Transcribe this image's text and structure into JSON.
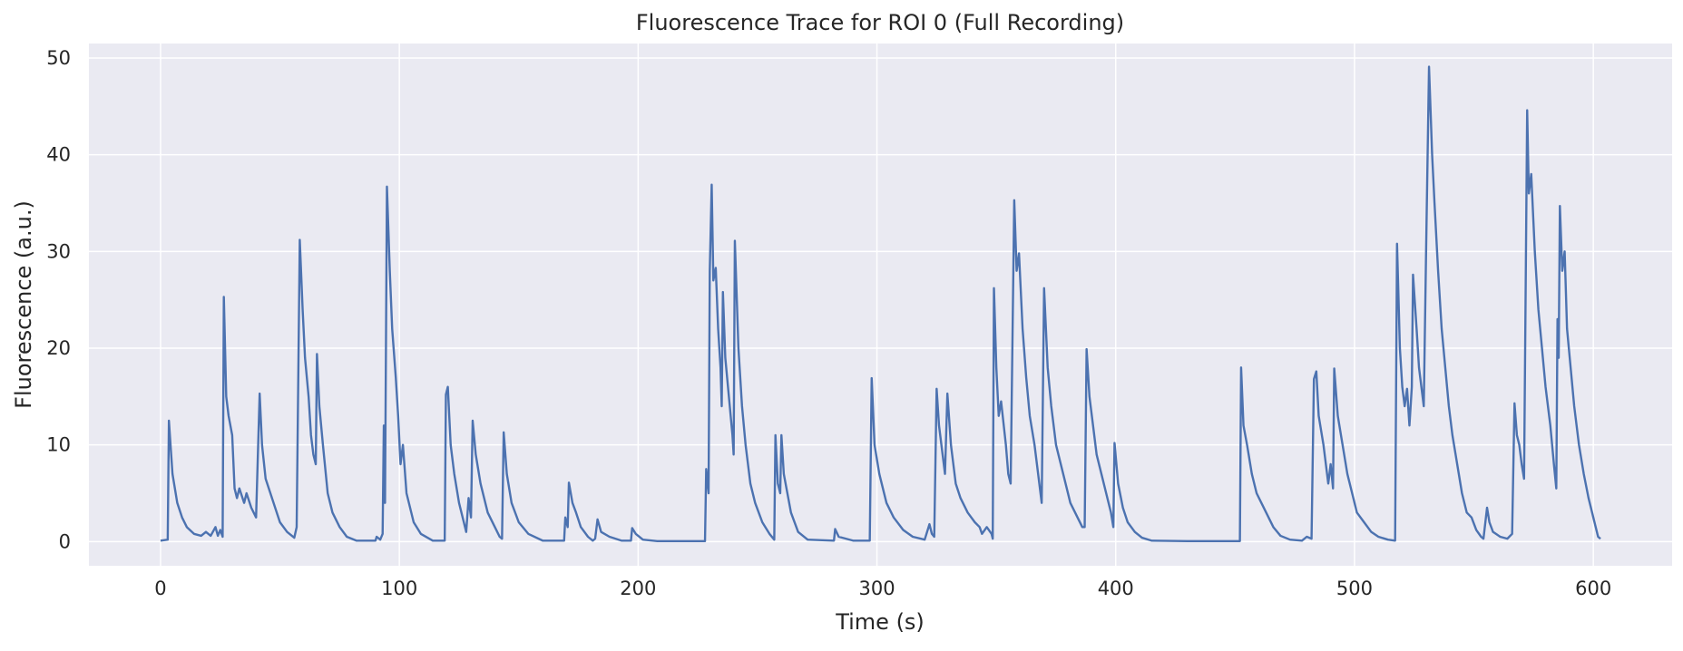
{
  "chart_data": {
    "type": "line",
    "title": "Fluorescence Trace for ROI 0 (Full Recording)",
    "xlabel": "Time (s)",
    "ylabel": "Fluorescence (a.u.)",
    "xlim": [
      -30,
      633
    ],
    "ylim": [
      -2.5,
      51.5
    ],
    "xticks": [
      0,
      100,
      200,
      300,
      400,
      500,
      600
    ],
    "yticks": [
      0,
      10,
      20,
      30,
      40,
      50
    ],
    "xtick_labels": [
      "0",
      "100",
      "200",
      "300",
      "400",
      "500",
      "600"
    ],
    "ytick_labels": [
      "0",
      "10",
      "20",
      "30",
      "40",
      "50"
    ],
    "grid": true,
    "background_color": "#EAEAF2",
    "grid_color": "#FFFFFF",
    "series": [
      {
        "color": "#4C72B0",
        "points": [
          [
            0,
            0.1
          ],
          [
            3,
            0.2
          ],
          [
            3.5,
            12.5
          ],
          [
            5,
            7
          ],
          [
            7,
            4
          ],
          [
            9,
            2.5
          ],
          [
            11,
            1.5
          ],
          [
            14,
            0.8
          ],
          [
            17,
            0.6
          ],
          [
            19,
            1.0
          ],
          [
            21,
            0.6
          ],
          [
            23,
            1.5
          ],
          [
            24,
            0.6
          ],
          [
            25,
            1.2
          ],
          [
            26,
            0.5
          ],
          [
            26.5,
            25.3
          ],
          [
            27.5,
            15
          ],
          [
            28.5,
            13
          ],
          [
            30,
            11
          ],
          [
            31,
            5.5
          ],
          [
            32,
            4.5
          ],
          [
            33,
            5.5
          ],
          [
            35,
            4
          ],
          [
            36,
            5
          ],
          [
            38,
            3.5
          ],
          [
            40,
            2.5
          ],
          [
            41.5,
            15.3
          ],
          [
            42.5,
            10
          ],
          [
            44,
            6.5
          ],
          [
            46,
            5
          ],
          [
            48,
            3.5
          ],
          [
            50,
            2
          ],
          [
            53,
            1
          ],
          [
            56,
            0.4
          ],
          [
            57,
            1.5
          ],
          [
            58.3,
            31.2
          ],
          [
            59.5,
            24
          ],
          [
            60.5,
            19
          ],
          [
            62,
            15
          ],
          [
            63,
            11
          ],
          [
            64,
            9
          ],
          [
            65,
            8
          ],
          [
            65.5,
            19.4
          ],
          [
            66.5,
            14
          ],
          [
            68,
            10
          ],
          [
            70,
            5
          ],
          [
            72,
            3
          ],
          [
            75,
            1.5
          ],
          [
            78,
            0.5
          ],
          [
            82,
            0.1
          ],
          [
            90,
            0.1
          ],
          [
            90.5,
            0.5
          ],
          [
            92,
            0.2
          ],
          [
            93,
            0.8
          ],
          [
            93.5,
            12
          ],
          [
            94,
            4
          ],
          [
            94.8,
            36.7
          ],
          [
            96,
            28
          ],
          [
            97,
            22
          ],
          [
            98.5,
            17
          ],
          [
            99.5,
            13
          ],
          [
            100.5,
            8
          ],
          [
            101.5,
            10
          ],
          [
            103,
            5
          ],
          [
            106,
            2
          ],
          [
            109,
            0.8
          ],
          [
            114,
            0.1
          ],
          [
            119,
            0.1
          ],
          [
            119.5,
            15.2
          ],
          [
            120.3,
            16
          ],
          [
            121.5,
            10
          ],
          [
            123,
            7
          ],
          [
            125,
            4
          ],
          [
            127,
            2
          ],
          [
            128,
            1
          ],
          [
            129,
            4.5
          ],
          [
            130,
            2.5
          ],
          [
            130.7,
            12.5
          ],
          [
            132,
            9
          ],
          [
            134,
            6
          ],
          [
            137,
            3
          ],
          [
            140,
            1.5
          ],
          [
            142,
            0.5
          ],
          [
            143,
            0.3
          ],
          [
            143.7,
            11.3
          ],
          [
            145,
            7
          ],
          [
            147,
            4
          ],
          [
            150,
            2
          ],
          [
            154,
            0.8
          ],
          [
            160,
            0.1
          ],
          [
            169,
            0.1
          ],
          [
            169.5,
            2.5
          ],
          [
            170.5,
            1.5
          ],
          [
            171,
            6.1
          ],
          [
            172.5,
            4
          ],
          [
            174,
            3
          ],
          [
            176,
            1.5
          ],
          [
            179,
            0.5
          ],
          [
            181,
            0.1
          ],
          [
            182,
            0.3
          ],
          [
            183,
            2.3
          ],
          [
            184.5,
            1
          ],
          [
            188,
            0.5
          ],
          [
            193,
            0.1
          ],
          [
            197,
            0.1
          ],
          [
            197.5,
            1.4
          ],
          [
            199,
            0.8
          ],
          [
            202,
            0.2
          ],
          [
            208,
            0.05
          ],
          [
            228,
            0.05
          ],
          [
            228.5,
            7.5
          ],
          [
            229.5,
            5
          ],
          [
            230,
            28
          ],
          [
            230.8,
            36.9
          ],
          [
            231.5,
            27
          ],
          [
            232.5,
            28.3
          ],
          [
            233.5,
            22
          ],
          [
            234.5,
            18
          ],
          [
            235,
            14
          ],
          [
            235.5,
            25.8
          ],
          [
            236.5,
            19
          ],
          [
            238,
            15
          ],
          [
            239.5,
            11
          ],
          [
            240,
            9
          ],
          [
            240.5,
            31.1
          ],
          [
            242,
            20
          ],
          [
            243.5,
            14
          ],
          [
            245,
            10
          ],
          [
            247,
            6
          ],
          [
            249,
            4
          ],
          [
            252,
            2
          ],
          [
            255,
            0.8
          ],
          [
            257,
            0.2
          ],
          [
            257.5,
            11
          ],
          [
            258.5,
            6
          ],
          [
            259.5,
            5
          ],
          [
            260,
            11
          ],
          [
            261,
            7
          ],
          [
            262.5,
            5
          ],
          [
            264,
            3
          ],
          [
            267,
            1
          ],
          [
            271,
            0.2
          ],
          [
            282,
            0.1
          ],
          [
            282.5,
            1.3
          ],
          [
            284,
            0.5
          ],
          [
            290,
            0.1
          ],
          [
            297,
            0.1
          ],
          [
            297.8,
            16.9
          ],
          [
            299,
            10
          ],
          [
            301,
            7
          ],
          [
            304,
            4
          ],
          [
            307,
            2.5
          ],
          [
            311,
            1.2
          ],
          [
            315,
            0.5
          ],
          [
            320,
            0.2
          ],
          [
            322,
            1.8
          ],
          [
            323,
            0.8
          ],
          [
            324,
            0.5
          ],
          [
            325,
            15.8
          ],
          [
            326,
            12
          ],
          [
            327.5,
            9
          ],
          [
            328.5,
            7
          ],
          [
            329.5,
            15.3
          ],
          [
            331,
            10
          ],
          [
            333,
            6
          ],
          [
            335,
            4.5
          ],
          [
            338,
            3
          ],
          [
            341,
            2
          ],
          [
            343,
            1.5
          ],
          [
            344,
            0.8
          ],
          [
            346,
            1.5
          ],
          [
            348,
            0.8
          ],
          [
            348.5,
            0.3
          ],
          [
            349,
            26.2
          ],
          [
            350,
            18
          ],
          [
            351,
            13
          ],
          [
            352,
            14.5
          ],
          [
            354,
            10
          ],
          [
            355,
            7
          ],
          [
            356,
            6
          ],
          [
            357.5,
            35.3
          ],
          [
            358.5,
            28
          ],
          [
            359.5,
            29.8
          ],
          [
            361,
            22
          ],
          [
            362.5,
            17
          ],
          [
            364,
            13
          ],
          [
            366,
            10
          ],
          [
            368,
            6
          ],
          [
            369,
            4
          ],
          [
            370,
            26.2
          ],
          [
            371.5,
            18
          ],
          [
            373,
            14
          ],
          [
            375,
            10
          ],
          [
            378,
            7
          ],
          [
            381,
            4
          ],
          [
            384,
            2.5
          ],
          [
            386,
            1.5
          ],
          [
            387,
            1.5
          ],
          [
            387.8,
            19.9
          ],
          [
            389,
            15
          ],
          [
            390.5,
            12
          ],
          [
            392,
            9
          ],
          [
            394,
            7
          ],
          [
            396,
            5
          ],
          [
            398,
            3
          ],
          [
            399,
            1.5
          ],
          [
            399.5,
            10.2
          ],
          [
            401,
            6
          ],
          [
            403,
            3.5
          ],
          [
            405,
            2
          ],
          [
            408,
            1
          ],
          [
            411,
            0.4
          ],
          [
            415,
            0.1
          ],
          [
            430,
            0.05
          ],
          [
            452,
            0.05
          ],
          [
            452.5,
            18
          ],
          [
            453.5,
            12
          ],
          [
            455,
            10
          ],
          [
            457,
            7
          ],
          [
            459,
            5
          ],
          [
            461,
            4
          ],
          [
            463,
            3
          ],
          [
            466,
            1.5
          ],
          [
            469,
            0.6
          ],
          [
            473,
            0.2
          ],
          [
            478,
            0.1
          ],
          [
            480,
            0.5
          ],
          [
            482,
            0.3
          ],
          [
            483,
            16.8
          ],
          [
            484,
            17.6
          ],
          [
            485,
            13
          ],
          [
            487,
            10
          ],
          [
            489,
            6
          ],
          [
            490,
            8
          ],
          [
            491,
            5.5
          ],
          [
            491.5,
            17.9
          ],
          [
            493,
            13
          ],
          [
            495,
            10
          ],
          [
            497,
            7
          ],
          [
            499,
            5
          ],
          [
            501,
            3
          ],
          [
            504,
            2
          ],
          [
            507,
            1
          ],
          [
            510,
            0.5
          ],
          [
            514,
            0.2
          ],
          [
            517,
            0.1
          ],
          [
            517.8,
            30.8
          ],
          [
            519,
            20
          ],
          [
            520,
            16
          ],
          [
            521,
            14
          ],
          [
            522,
            15.8
          ],
          [
            523,
            12
          ],
          [
            524,
            16
          ],
          [
            524.5,
            27.6
          ],
          [
            526,
            22
          ],
          [
            527,
            18
          ],
          [
            528,
            16
          ],
          [
            529,
            14
          ],
          [
            530,
            30.5
          ],
          [
            531.2,
            49.1
          ],
          [
            532.5,
            40
          ],
          [
            533.5,
            35
          ],
          [
            535,
            28
          ],
          [
            536.5,
            22
          ],
          [
            538,
            18
          ],
          [
            539.5,
            14
          ],
          [
            541,
            11
          ],
          [
            543,
            8
          ],
          [
            545,
            5
          ],
          [
            547,
            3
          ],
          [
            549,
            2.5
          ],
          [
            551,
            1.2
          ],
          [
            553,
            0.5
          ],
          [
            554,
            0.3
          ],
          [
            555.5,
            3.5
          ],
          [
            556.5,
            2
          ],
          [
            558,
            1
          ],
          [
            561,
            0.5
          ],
          [
            564,
            0.3
          ],
          [
            566,
            0.8
          ],
          [
            567,
            14.3
          ],
          [
            568,
            11
          ],
          [
            569,
            10
          ],
          [
            570,
            8
          ],
          [
            571,
            6.5
          ],
          [
            572.3,
            44.6
          ],
          [
            573,
            36
          ],
          [
            574,
            38
          ],
          [
            575.5,
            30
          ],
          [
            577,
            24
          ],
          [
            578.5,
            20
          ],
          [
            580,
            16
          ],
          [
            582,
            12
          ],
          [
            583.5,
            8
          ],
          [
            584.5,
            5.5
          ],
          [
            585,
            23
          ],
          [
            585.5,
            19
          ],
          [
            586,
            34.7
          ],
          [
            587,
            28
          ],
          [
            588,
            30
          ],
          [
            589,
            22
          ],
          [
            590.5,
            18
          ],
          [
            592,
            14
          ],
          [
            594,
            10
          ],
          [
            596,
            7
          ],
          [
            598,
            4.5
          ],
          [
            600,
            2.5
          ],
          [
            602,
            0.5
          ],
          [
            603,
            0.3
          ]
        ]
      }
    ]
  }
}
